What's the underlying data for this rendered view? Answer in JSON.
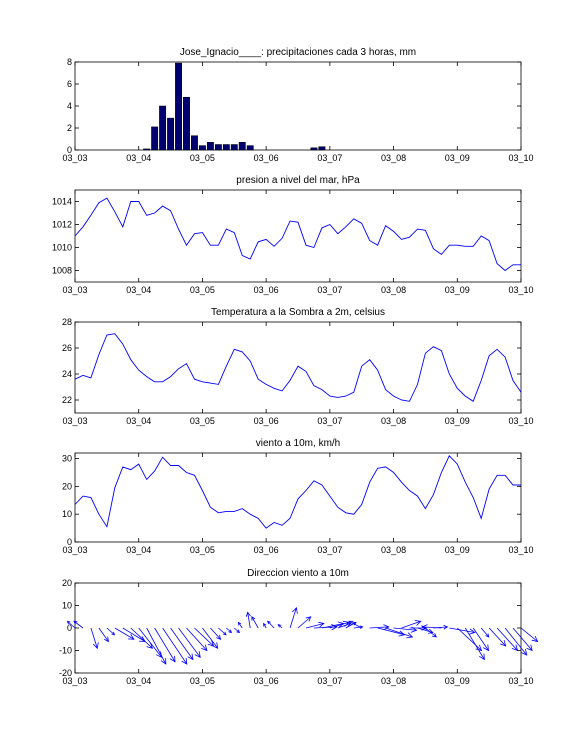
{
  "chart_data": [
    {
      "type": "bar",
      "title": "Jose_Ignacio____: precipitaciones cada 3 horas, mm",
      "xlabel": "",
      "ylabel": "",
      "xlim": [
        0,
        7
      ],
      "ylim": [
        0,
        8
      ],
      "yticks": [
        0,
        2,
        4,
        6,
        8
      ],
      "xticklabels": [
        "03_03",
        "03_04",
        "03_05",
        "03_06",
        "03_07",
        "03_08",
        "03_09",
        "03_10"
      ],
      "bar_color": "#00006e",
      "x": [
        1.125,
        1.25,
        1.375,
        1.5,
        1.625,
        1.75,
        1.875,
        2.0,
        2.125,
        2.25,
        2.375,
        2.5,
        2.625,
        2.75,
        3.75,
        3.875
      ],
      "values": [
        0.1,
        2.1,
        4.0,
        2.9,
        7.9,
        4.8,
        1.3,
        0.4,
        0.7,
        0.5,
        0.5,
        0.5,
        0.7,
        0.4,
        0.2,
        0.3
      ]
    },
    {
      "type": "line",
      "title": "presion a nivel del mar, hPa",
      "xlabel": "",
      "ylabel": "",
      "xlim": [
        0,
        7
      ],
      "ylim": [
        1007,
        1015
      ],
      "yticks": [
        1008,
        1010,
        1012,
        1014
      ],
      "xticklabels": [
        "03_03",
        "03_04",
        "03_05",
        "03_06",
        "03_07",
        "03_08",
        "03_09",
        "03_10"
      ],
      "color": "#0000ff",
      "values": [
        1011.0,
        1011.8,
        1012.8,
        1013.9,
        1014.3,
        1013.1,
        1011.8,
        1014.0,
        1014.0,
        1012.8,
        1013.0,
        1013.6,
        1013.2,
        1011.6,
        1010.2,
        1011.2,
        1011.3,
        1010.2,
        1010.2,
        1011.6,
        1011.3,
        1009.3,
        1009.0,
        1010.5,
        1010.7,
        1010.1,
        1010.8,
        1012.3,
        1012.2,
        1010.2,
        1010.0,
        1011.7,
        1012.0,
        1011.2,
        1011.8,
        1012.5,
        1012.1,
        1010.6,
        1010.2,
        1011.9,
        1011.4,
        1010.7,
        1010.9,
        1011.6,
        1011.5,
        1009.9,
        1009.4,
        1010.2,
        1010.2,
        1010.1,
        1010.1,
        1011.0,
        1010.6,
        1008.6,
        1008.0,
        1008.5,
        1008.5
      ]
    },
    {
      "type": "line",
      "title": "Temperatura a la Sombra a 2m, celsius",
      "xlabel": "",
      "ylabel": "",
      "xlim": [
        0,
        7
      ],
      "ylim": [
        21,
        28
      ],
      "yticks": [
        22,
        24,
        26,
        28
      ],
      "xticklabels": [
        "03_03",
        "03_04",
        "03_05",
        "03_06",
        "03_07",
        "03_08",
        "03_09",
        "03_10"
      ],
      "color": "#0000ff",
      "values": [
        23.6,
        23.9,
        23.7,
        25.5,
        27.0,
        27.1,
        26.3,
        25.1,
        24.3,
        23.8,
        23.4,
        23.4,
        23.8,
        24.4,
        24.8,
        23.6,
        23.4,
        23.3,
        23.2,
        24.6,
        25.9,
        25.7,
        25.0,
        23.6,
        23.2,
        22.9,
        22.7,
        23.5,
        24.6,
        24.2,
        23.1,
        22.8,
        22.3,
        22.2,
        22.3,
        22.6,
        24.6,
        25.1,
        24.3,
        22.8,
        22.3,
        22.0,
        21.9,
        23.2,
        25.6,
        26.1,
        25.8,
        24.0,
        22.9,
        22.3,
        21.9,
        23.5,
        25.4,
        25.9,
        25.3,
        23.5,
        22.6
      ]
    },
    {
      "type": "line",
      "title": "viento a 10m, km/h",
      "xlabel": "",
      "ylabel": "",
      "xlim": [
        0,
        7
      ],
      "ylim": [
        0,
        32
      ],
      "yticks": [
        0,
        10,
        20,
        30
      ],
      "xticklabels": [
        "03_03",
        "03_04",
        "03_05",
        "03_06",
        "03_07",
        "03_08",
        "03_09",
        "03_10"
      ],
      "color": "#0000ff",
      "values": [
        13.5,
        16.5,
        16.0,
        10.0,
        5.5,
        19.5,
        27.0,
        26.0,
        28.0,
        22.5,
        25.5,
        30.5,
        27.5,
        27.5,
        25.0,
        24.0,
        18.5,
        12.5,
        10.5,
        11.0,
        11.0,
        12.0,
        10.0,
        8.5,
        5.0,
        7.0,
        6.0,
        8.5,
        15.5,
        18.5,
        22.0,
        20.5,
        16.5,
        12.5,
        10.5,
        10.0,
        13.5,
        21.5,
        26.5,
        27.0,
        25.0,
        21.5,
        18.5,
        16.5,
        12.0,
        17.0,
        25.0,
        31.0,
        28.0,
        21.5,
        16.0,
        8.5,
        19.0,
        24.0,
        24.0,
        20.5,
        20.5
      ]
    },
    {
      "type": "quiver",
      "title": "Direccion viento a 10m",
      "xlabel": "",
      "ylabel": "",
      "xlim": [
        0,
        7
      ],
      "ylim": [
        -20,
        20
      ],
      "yticks": [
        -20,
        -10,
        0,
        10,
        20
      ],
      "xticklabels": [
        "03_03",
        "03_04",
        "03_05",
        "03_06",
        "03_07",
        "03_08",
        "03_09",
        "03_10"
      ],
      "color": "#0000ff",
      "note_units": "u,v in time-units (x) and y-axis units",
      "u": [
        -0.12,
        -0.14,
        0.1,
        0.15,
        0.12,
        0.3,
        0.35,
        0.34,
        0.36,
        0.3,
        0.32,
        0.38,
        0.35,
        0.34,
        0.32,
        0.3,
        0.24,
        0.16,
        0.12,
        0.08,
        0.08,
        -0.06,
        -0.04,
        -0.1,
        -0.04,
        -0.1,
        -0.06,
        0.1,
        0.2,
        0.28,
        0.36,
        0.34,
        0.3,
        0.2,
        0.16,
        0.14,
        -0.2,
        0.3,
        0.42,
        0.42,
        0.36,
        0.3,
        0.26,
        0.24,
        0.17,
        0.22,
        -0.3,
        0.4,
        0.38,
        0.3,
        0.24,
        0.12,
        0.26,
        0.32,
        0.34,
        0.3,
        0.26
      ],
      "v": [
        3.0,
        3.0,
        -9.0,
        -6.0,
        -3.0,
        -5.0,
        -6.0,
        -9.0,
        -13.0,
        -16.0,
        -15.0,
        -16.0,
        -14.0,
        -13.0,
        -10.0,
        -8.0,
        -9.0,
        -5.0,
        -3.0,
        -2.0,
        -2.0,
        2.5,
        7.0,
        5.0,
        2.0,
        3.0,
        1.5,
        9.0,
        5.0,
        2.0,
        0.5,
        2.0,
        2.5,
        2.0,
        2.5,
        0.5,
        3.0,
        0.5,
        -3.0,
        -4.0,
        -1.0,
        3.0,
        0.0,
        -2.0,
        -4.0,
        0.5,
        0.5,
        -2.0,
        -10.0,
        -14.0,
        -10.0,
        -4.0,
        -8.0,
        -10.0,
        -12.0,
        -10.0,
        -6.0
      ]
    }
  ]
}
